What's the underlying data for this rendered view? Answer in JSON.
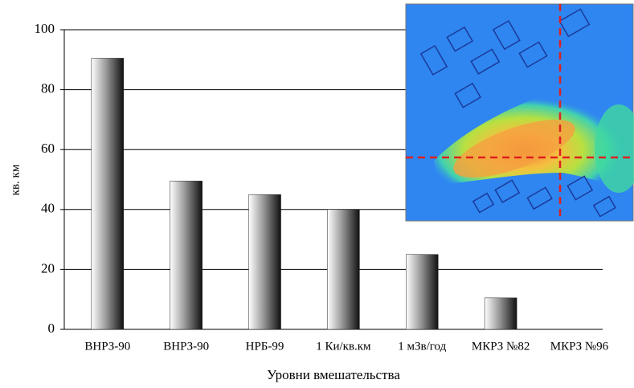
{
  "chart_data": {
    "type": "bar",
    "y_label": "кв. км",
    "x_label": "Уровни вмешательства",
    "categories": [
      "ВНРЗ-90",
      "ВНРЗ-90",
      "НРБ-99",
      "1 Ки/кв.км",
      "1 мЗв/год",
      "МКРЗ №82",
      "МКРЗ №96"
    ],
    "values": [
      90.5,
      49.5,
      45,
      40,
      25,
      10.5,
      0
    ],
    "ylim": [
      0,
      100
    ],
    "yticks": [
      0,
      20,
      40,
      60,
      80,
      100
    ],
    "grid": true
  }
}
